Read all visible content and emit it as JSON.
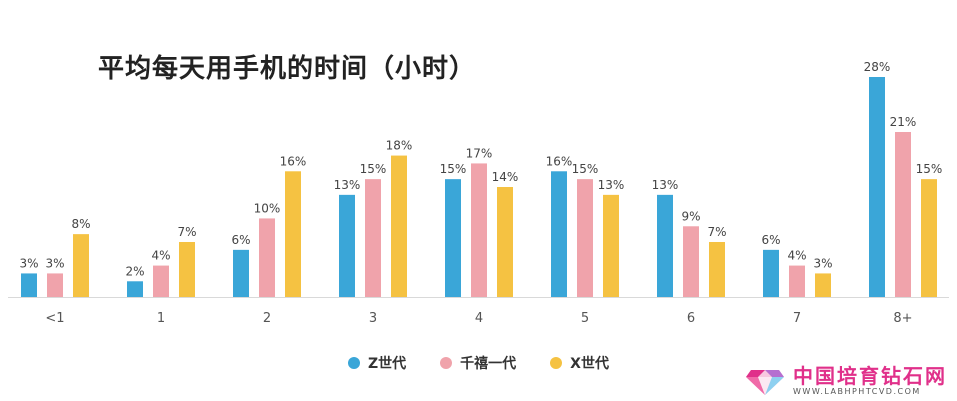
{
  "chart_data": {
    "type": "bar",
    "title": "平均每天用手机的时间（小时）",
    "categories": [
      "<1",
      "1",
      "2",
      "3",
      "4",
      "5",
      "6",
      "7",
      "8+"
    ],
    "series": [
      {
        "name": "Z世代",
        "color": "#3aa6d8",
        "values": [
          3,
          2,
          6,
          13,
          15,
          16,
          13,
          6,
          28
        ]
      },
      {
        "name": "千禧一代",
        "color": "#f0a3ab",
        "values": [
          3,
          4,
          10,
          15,
          17,
          15,
          9,
          4,
          21
        ]
      },
      {
        "name": "X世代",
        "color": "#f5c242",
        "values": [
          8,
          7,
          16,
          18,
          14,
          13,
          7,
          3,
          15
        ]
      }
    ],
    "value_suffix": "%",
    "ylim": [
      0,
      28
    ],
    "grid": false,
    "legend_position": "bottom-center"
  },
  "watermark": {
    "name": "中国培育钻石网",
    "url": "WWW.LABHPHTCVD.COM"
  }
}
